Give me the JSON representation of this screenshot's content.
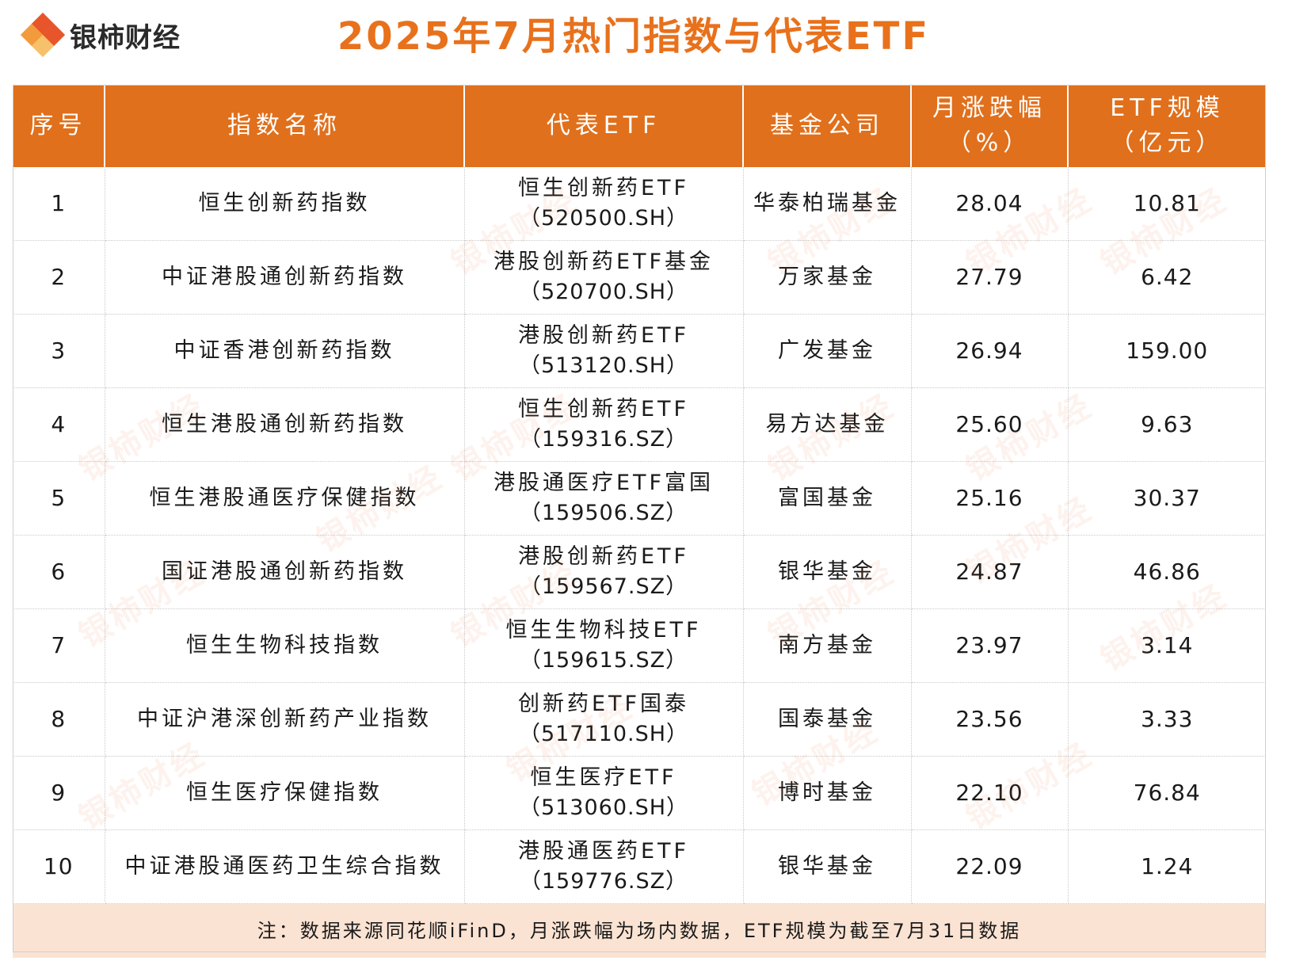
{
  "brand": {
    "name": "银柿财经"
  },
  "title": "2025年7月热门指数与代表ETF",
  "colors": {
    "accent": "#e0701c",
    "title": "#e8711c",
    "note_bg": "#fbe3d3",
    "logo_a": "#e8552a",
    "logo_b": "#f39a3c",
    "logo_c": "#f7c06a"
  },
  "table": {
    "headers": [
      {
        "line1": "序号",
        "line2": ""
      },
      {
        "line1": "指数名称",
        "line2": ""
      },
      {
        "line1": "代表ETF",
        "line2": ""
      },
      {
        "line1": "基金公司",
        "line2": ""
      },
      {
        "line1": "月涨跌幅",
        "line2": "（%）"
      },
      {
        "line1": "ETF规模",
        "line2": "（亿元）"
      }
    ],
    "rows": [
      {
        "no": "1",
        "index": "恒生创新药指数",
        "etf_name": "恒生创新药ETF",
        "etf_code": "（520500.SH）",
        "company": "华泰柏瑞基金",
        "change": "28.04",
        "scale": "10.81"
      },
      {
        "no": "2",
        "index": "中证港股通创新药指数",
        "etf_name": "港股创新药ETF基金",
        "etf_code": "（520700.SH）",
        "company": "万家基金",
        "change": "27.79",
        "scale": "6.42"
      },
      {
        "no": "3",
        "index": "中证香港创新药指数",
        "etf_name": "港股创新药ETF",
        "etf_code": "（513120.SH）",
        "company": "广发基金",
        "change": "26.94",
        "scale": "159.00"
      },
      {
        "no": "4",
        "index": "恒生港股通创新药指数",
        "etf_name": "恒生创新药ETF",
        "etf_code": "（159316.SZ）",
        "company": "易方达基金",
        "change": "25.60",
        "scale": "9.63"
      },
      {
        "no": "5",
        "index": "恒生港股通医疗保健指数",
        "etf_name": "港股通医疗ETF富国",
        "etf_code": "（159506.SZ）",
        "company": "富国基金",
        "change": "25.16",
        "scale": "30.37"
      },
      {
        "no": "6",
        "index": "国证港股通创新药指数",
        "etf_name": "港股创新药ETF",
        "etf_code": "（159567.SZ）",
        "company": "银华基金",
        "change": "24.87",
        "scale": "46.86"
      },
      {
        "no": "7",
        "index": "恒生生物科技指数",
        "etf_name": "恒生生物科技ETF",
        "etf_code": "（159615.SZ）",
        "company": "南方基金",
        "change": "23.97",
        "scale": "3.14"
      },
      {
        "no": "8",
        "index": "中证沪港深创新药产业指数",
        "etf_name": "创新药ETF国泰",
        "etf_code": "（517110.SH）",
        "company": "国泰基金",
        "change": "23.56",
        "scale": "3.33"
      },
      {
        "no": "9",
        "index": "恒生医疗保健指数",
        "etf_name": "恒生医疗ETF",
        "etf_code": "（513060.SH）",
        "company": "博时基金",
        "change": "22.10",
        "scale": "76.84"
      },
      {
        "no": "10",
        "index": "中证港股通医药卫生综合指数",
        "etf_name": "港股通医药ETF",
        "etf_code": "（159776.SZ）",
        "company": "银华基金",
        "change": "22.09",
        "scale": "1.24"
      }
    ],
    "note": "注：数据来源同花顺iFinD，月涨跌幅为场内数据，ETF规模为截至7月31日数据"
  }
}
